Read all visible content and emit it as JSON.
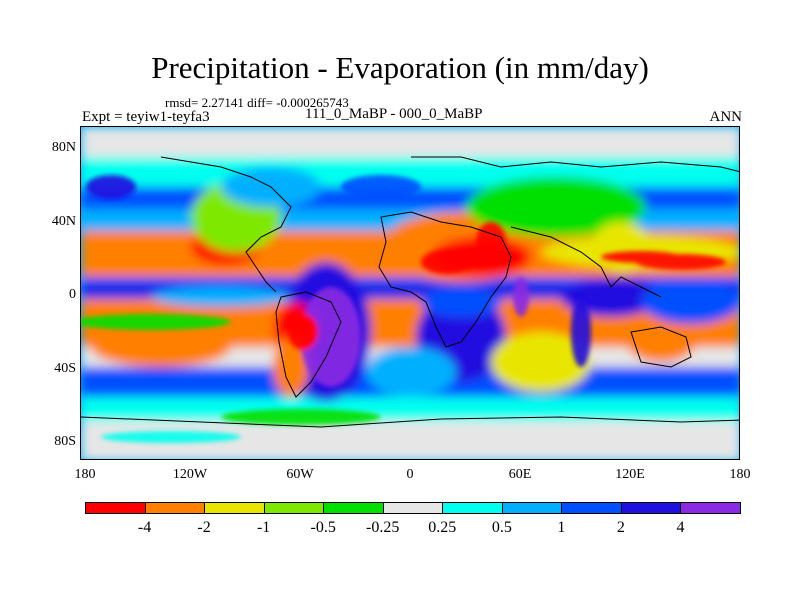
{
  "title": "Precipitation - Evaporation (in mm/day)",
  "stats": "rmsd= 2.27141 diff= -0.000265743",
  "experiment": "Expt = teyiw1-teyfa3",
  "comparison": "111_0_MaBP - 000_0_MaBP",
  "season": "ANN",
  "lat_labels": [
    "80N",
    "40N",
    "0",
    "40S",
    "80S"
  ],
  "lon_labels": [
    "180",
    "120W",
    "60W",
    "0",
    "60E",
    "120E",
    "180"
  ],
  "colorbar": {
    "colors": [
      "#ff0000",
      "#ff7f00",
      "#e8e600",
      "#7fe800",
      "#00e000",
      "#e6e6e6",
      "#00ffee",
      "#00b0ff",
      "#0050ff",
      "#2010e0",
      "#8a2be2"
    ],
    "labels": [
      "-4",
      "-2",
      "-1",
      "-0.5",
      "-0.25",
      "0.25",
      "0.5",
      "1",
      "2",
      "4"
    ]
  }
}
